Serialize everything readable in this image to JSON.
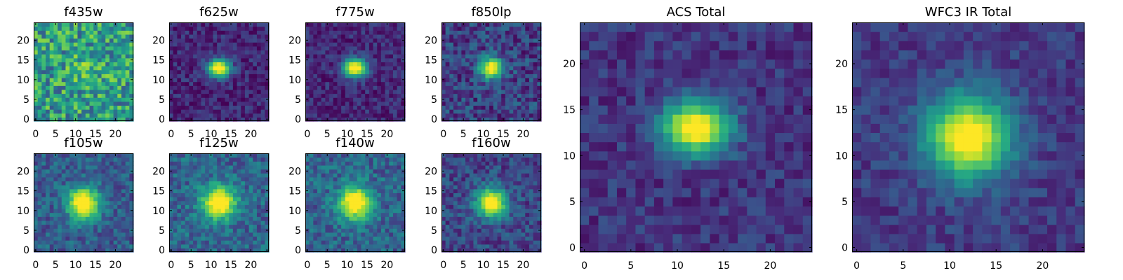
{
  "colormap": "viridis",
  "colors": {
    "background": "#ffffff",
    "viridis_low": "#440154",
    "viridis_mid": "#21918c",
    "viridis_high": "#fde725"
  },
  "chart_data": [
    {
      "type": "heatmap",
      "title": "f435w",
      "grid_size": 25,
      "xticks": [
        0,
        5,
        10,
        15,
        20
      ],
      "yticks": [
        0,
        5,
        10,
        15,
        20
      ],
      "xlim": [
        -0.5,
        24.5
      ],
      "ylim": [
        -0.5,
        24.5
      ],
      "source_center": [
        13,
        13
      ],
      "source_sigma": [
        3.0,
        3.0
      ],
      "peak": 0.15,
      "background": 0.55,
      "noise": 0.28,
      "noise_contrast": 1.0,
      "seed": 11
    },
    {
      "type": "heatmap",
      "title": "f625w",
      "grid_size": 25,
      "xticks": [
        0,
        5,
        10,
        15,
        20
      ],
      "yticks": [
        0,
        5,
        10,
        15,
        20
      ],
      "xlim": [
        -0.5,
        24.5
      ],
      "ylim": [
        -0.5,
        24.5
      ],
      "source_center": [
        12,
        13
      ],
      "source_sigma": [
        2.0,
        1.6
      ],
      "peak": 1.0,
      "background": 0.12,
      "noise": 0.12,
      "noise_contrast": 0.35,
      "seed": 22
    },
    {
      "type": "heatmap",
      "title": "f775w",
      "grid_size": 25,
      "xticks": [
        0,
        5,
        10,
        15,
        20
      ],
      "yticks": [
        0,
        5,
        10,
        15,
        20
      ],
      "xlim": [
        -0.5,
        24.5
      ],
      "ylim": [
        -0.5,
        24.5
      ],
      "source_center": [
        12,
        13
      ],
      "source_sigma": [
        2.1,
        1.7
      ],
      "peak": 1.0,
      "background": 0.12,
      "noise": 0.12,
      "noise_contrast": 0.35,
      "seed": 33
    },
    {
      "type": "heatmap",
      "title": "f850lp",
      "grid_size": 25,
      "xticks": [
        0,
        5,
        10,
        15,
        20
      ],
      "yticks": [
        0,
        5,
        10,
        15,
        20
      ],
      "xlim": [
        -0.5,
        24.5
      ],
      "ylim": [
        -0.5,
        24.5
      ],
      "source_center": [
        12,
        13
      ],
      "source_sigma": [
        2.1,
        1.9
      ],
      "peak": 0.85,
      "background": 0.2,
      "noise": 0.18,
      "noise_contrast": 0.5,
      "seed": 44
    },
    {
      "type": "heatmap",
      "title": "f105w",
      "grid_size": 25,
      "xticks": [
        0,
        5,
        10,
        15,
        20
      ],
      "yticks": [
        0,
        5,
        10,
        15,
        20
      ],
      "xlim": [
        -0.5,
        24.5
      ],
      "ylim": [
        -0.5,
        24.5
      ],
      "source_center": [
        12,
        12
      ],
      "source_sigma": [
        2.8,
        2.8
      ],
      "peak": 0.85,
      "background": 0.3,
      "noise": 0.15,
      "noise_contrast": 0.45,
      "seed": 55
    },
    {
      "type": "heatmap",
      "title": "f125w",
      "grid_size": 25,
      "xticks": [
        0,
        5,
        10,
        15,
        20
      ],
      "yticks": [
        0,
        5,
        10,
        15,
        20
      ],
      "xlim": [
        -0.5,
        24.5
      ],
      "ylim": [
        -0.5,
        24.5
      ],
      "source_center": [
        12,
        12
      ],
      "source_sigma": [
        3.0,
        3.0
      ],
      "peak": 0.8,
      "background": 0.33,
      "noise": 0.16,
      "noise_contrast": 0.45,
      "seed": 66
    },
    {
      "type": "heatmap",
      "title": "f140w",
      "grid_size": 25,
      "xticks": [
        0,
        5,
        10,
        15,
        20
      ],
      "yticks": [
        0,
        5,
        10,
        15,
        20
      ],
      "xlim": [
        -0.5,
        24.5
      ],
      "ylim": [
        -0.5,
        24.5
      ],
      "source_center": [
        12,
        12
      ],
      "source_sigma": [
        3.0,
        3.0
      ],
      "peak": 0.8,
      "background": 0.32,
      "noise": 0.16,
      "noise_contrast": 0.45,
      "seed": 77
    },
    {
      "type": "heatmap",
      "title": "f160w",
      "grid_size": 25,
      "xticks": [
        0,
        5,
        10,
        15,
        20
      ],
      "yticks": [
        0,
        5,
        10,
        15,
        20
      ],
      "xlim": [
        -0.5,
        24.5
      ],
      "ylim": [
        -0.5,
        24.5
      ],
      "source_center": [
        12,
        12
      ],
      "source_sigma": [
        2.6,
        2.6
      ],
      "peak": 0.9,
      "background": 0.22,
      "noise": 0.15,
      "noise_contrast": 0.45,
      "seed": 88
    },
    {
      "type": "heatmap",
      "title": "ACS Total",
      "grid_size": 25,
      "xticks": [
        0,
        5,
        10,
        15,
        20
      ],
      "yticks": [
        0,
        5,
        10,
        15,
        20
      ],
      "xlim": [
        -0.5,
        24.5
      ],
      "ylim": [
        -0.5,
        24.5
      ],
      "source_center": [
        12,
        13
      ],
      "source_sigma": [
        2.6,
        2.0
      ],
      "peak": 0.95,
      "background": 0.16,
      "noise": 0.11,
      "noise_contrast": 0.3,
      "seed": 99
    },
    {
      "type": "heatmap",
      "title": "WFC3 IR Total",
      "grid_size": 25,
      "xticks": [
        0,
        5,
        10,
        15,
        20
      ],
      "yticks": [
        0,
        5,
        10,
        15,
        20
      ],
      "xlim": [
        -0.5,
        24.5
      ],
      "ylim": [
        -0.5,
        24.5
      ],
      "source_center": [
        12,
        12
      ],
      "source_sigma": [
        3.2,
        3.2
      ],
      "peak": 0.9,
      "background": 0.18,
      "noise": 0.1,
      "noise_contrast": 0.3,
      "seed": 111
    }
  ]
}
